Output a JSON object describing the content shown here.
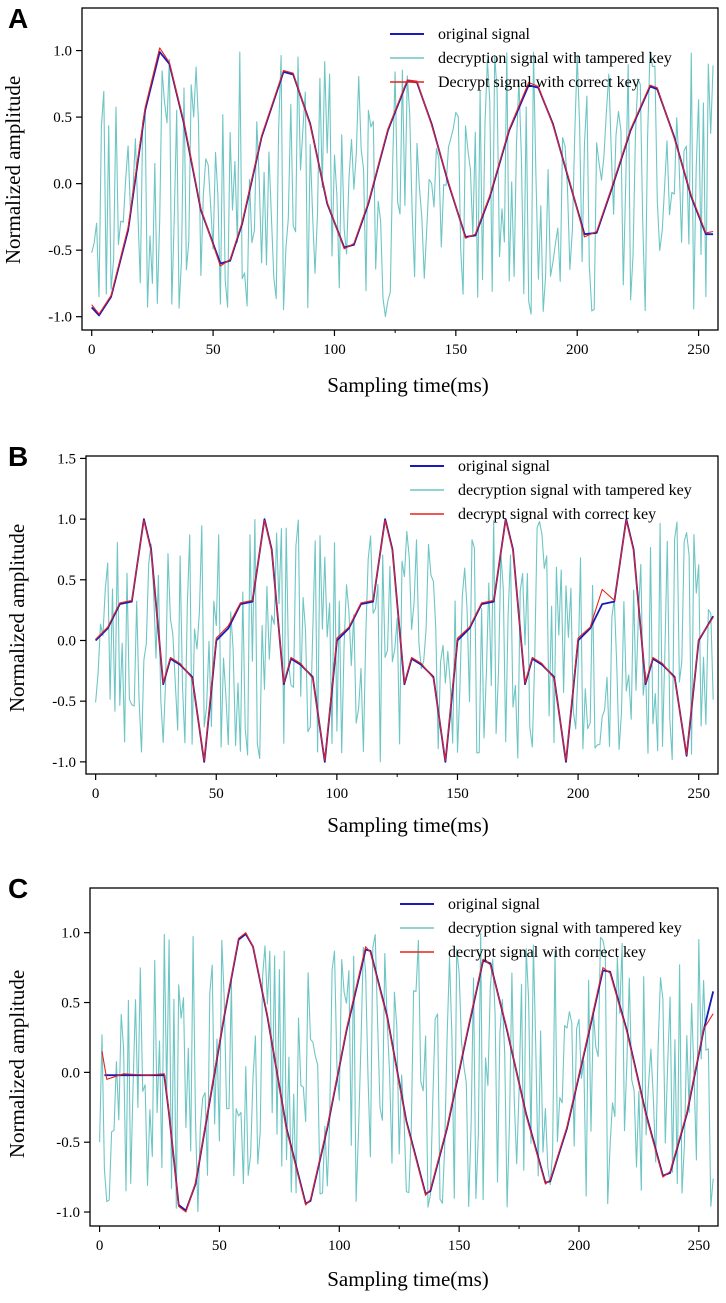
{
  "colors": {
    "original": "#1a1ab8",
    "tampered": "#6ec6c4",
    "correct": "#e8221e",
    "axis": "#000000"
  },
  "chart_data": [
    {
      "type": "line",
      "panel_label": "A",
      "xlabel": "Sampling time(ms)",
      "ylabel": "Normalized amplitude",
      "xlim": [
        -4,
        258
      ],
      "ylim": [
        -1.1,
        1.32
      ],
      "xticks": [
        0,
        50,
        100,
        150,
        200,
        250
      ],
      "yticks": [
        -1.0,
        -0.5,
        0.0,
        0.5,
        1.0
      ],
      "ytick_labels": [
        "-1.0",
        "-0.5",
        "0.0",
        "0.5",
        "1.0"
      ],
      "legend_position": "top-right",
      "series": [
        {
          "name": "original signal",
          "role": "original",
          "x": [
            0,
            3,
            8,
            15,
            22,
            28,
            32,
            38,
            45,
            53,
            57,
            62,
            70,
            79,
            83,
            90,
            97,
            104,
            108,
            114,
            122,
            130,
            134,
            140,
            147,
            154,
            158,
            164,
            172,
            180,
            184,
            190,
            197,
            203,
            208,
            214,
            222,
            230,
            233,
            240,
            247,
            253,
            256
          ],
          "y": [
            -0.93,
            -0.99,
            -0.85,
            -0.35,
            0.55,
            0.99,
            0.9,
            0.45,
            -0.2,
            -0.6,
            -0.58,
            -0.3,
            0.35,
            0.84,
            0.82,
            0.45,
            -0.15,
            -0.48,
            -0.46,
            -0.15,
            0.4,
            0.77,
            0.76,
            0.45,
            0.0,
            -0.4,
            -0.39,
            -0.1,
            0.4,
            0.74,
            0.72,
            0.45,
            0.0,
            -0.38,
            -0.37,
            -0.05,
            0.4,
            0.73,
            0.71,
            0.35,
            -0.1,
            -0.38,
            -0.38
          ]
        },
        {
          "name": "decryption signal with tampered key",
          "role": "tampered",
          "x": [
            0,
            256
          ],
          "y": [
            -0.5,
            0.8
          ],
          "seed": 11
        },
        {
          "name": "Decrypt signal with correct key",
          "role": "correct",
          "x": [
            0,
            3,
            8,
            15,
            22,
            28,
            32,
            38,
            45,
            53,
            57,
            62,
            70,
            79,
            83,
            90,
            97,
            104,
            108,
            114,
            122,
            130,
            134,
            140,
            147,
            154,
            158,
            164,
            172,
            180,
            184,
            190,
            197,
            203,
            208,
            214,
            222,
            230,
            233,
            240,
            247,
            253,
            256
          ],
          "y": [
            -0.91,
            -0.98,
            -0.84,
            -0.33,
            0.57,
            1.02,
            0.91,
            0.46,
            -0.19,
            -0.62,
            -0.57,
            -0.29,
            0.36,
            0.85,
            0.83,
            0.44,
            -0.14,
            -0.49,
            -0.45,
            -0.14,
            0.41,
            0.78,
            0.77,
            0.44,
            0.01,
            -0.41,
            -0.38,
            -0.09,
            0.41,
            0.76,
            0.73,
            0.44,
            0.01,
            -0.4,
            -0.36,
            -0.04,
            0.41,
            0.74,
            0.72,
            0.34,
            -0.09,
            -0.37,
            -0.36
          ]
        }
      ]
    },
    {
      "type": "line",
      "panel_label": "B",
      "xlabel": "Sampling time(ms)",
      "ylabel": "Normalized amplitude",
      "xlim": [
        -4,
        258
      ],
      "ylim": [
        -1.1,
        1.52
      ],
      "xticks": [
        0,
        50,
        100,
        150,
        200,
        250
      ],
      "yticks": [
        -1.0,
        -0.5,
        0.0,
        0.5,
        1.0,
        1.5
      ],
      "ytick_labels": [
        "-1.0",
        "-0.5",
        "0.0",
        "0.5",
        "1.0",
        "1.5"
      ],
      "legend_position": "top-right",
      "series": [
        {
          "name": "original signal",
          "role": "original",
          "x": [
            0,
            5,
            10,
            15,
            20,
            23,
            28,
            31,
            35,
            40,
            45,
            50,
            55,
            60,
            65,
            70,
            73,
            78,
            81,
            85,
            90,
            95,
            100,
            105,
            110,
            115,
            120,
            123,
            128,
            131,
            135,
            140,
            145,
            150,
            155,
            160,
            165,
            170,
            173,
            178,
            181,
            185,
            190,
            195,
            200,
            205,
            210,
            215,
            220,
            223,
            228,
            231,
            235,
            240,
            245,
            250,
            256
          ],
          "y": [
            0.0,
            0.1,
            0.3,
            0.32,
            1.0,
            0.75,
            -0.36,
            -0.15,
            -0.2,
            -0.3,
            -1.0,
            0.0,
            0.1,
            0.3,
            0.32,
            1.0,
            0.75,
            -0.36,
            -0.15,
            -0.2,
            -0.3,
            -1.0,
            0.0,
            0.1,
            0.3,
            0.32,
            1.0,
            0.75,
            -0.36,
            -0.15,
            -0.2,
            -0.3,
            -1.0,
            0.0,
            0.1,
            0.3,
            0.32,
            1.0,
            0.75,
            -0.36,
            -0.15,
            -0.2,
            -0.3,
            -1.0,
            0.0,
            0.1,
            0.3,
            0.32,
            1.0,
            0.75,
            -0.36,
            -0.15,
            -0.2,
            -0.3,
            -0.95,
            0.0,
            0.2
          ]
        },
        {
          "name": "decryption signal with tampered key",
          "role": "tampered",
          "x": [
            0,
            256
          ],
          "y": [
            -0.5,
            0.8
          ],
          "seed": 23
        },
        {
          "name": "decrypt signal with correct key",
          "role": "correct",
          "x": [
            0,
            5,
            10,
            15,
            20,
            23,
            28,
            31,
            35,
            40,
            45,
            50,
            55,
            60,
            65,
            70,
            73,
            78,
            81,
            85,
            90,
            95,
            100,
            105,
            110,
            115,
            120,
            123,
            128,
            131,
            135,
            140,
            145,
            150,
            155,
            160,
            165,
            170,
            173,
            178,
            181,
            185,
            190,
            195,
            200,
            205,
            210,
            215,
            220,
            223,
            228,
            231,
            235,
            240,
            245,
            250,
            256
          ],
          "y": [
            0.01,
            0.11,
            0.31,
            0.33,
            0.99,
            0.74,
            -0.35,
            -0.14,
            -0.19,
            -0.31,
            -0.99,
            0.02,
            0.12,
            0.31,
            0.33,
            0.99,
            0.74,
            -0.35,
            -0.14,
            -0.19,
            -0.31,
            -0.99,
            0.02,
            0.11,
            0.31,
            0.33,
            0.99,
            0.74,
            -0.35,
            -0.14,
            -0.19,
            -0.31,
            -0.99,
            0.02,
            0.11,
            0.31,
            0.33,
            0.99,
            0.74,
            -0.35,
            -0.14,
            -0.19,
            -0.31,
            -0.99,
            0.02,
            0.11,
            0.42,
            0.33,
            0.99,
            0.74,
            -0.35,
            -0.14,
            -0.19,
            -0.31,
            -0.94,
            0.01,
            0.19
          ]
        }
      ]
    },
    {
      "type": "line",
      "panel_label": "C",
      "xlabel": "Sampling time(ms)",
      "ylabel": "Normalized amplitude",
      "xlim": [
        -4,
        258
      ],
      "ylim": [
        -1.1,
        1.32
      ],
      "xticks": [
        0,
        50,
        100,
        150,
        200,
        250
      ],
      "yticks": [
        -1.0,
        -0.5,
        0.0,
        0.5,
        1.0
      ],
      "ytick_labels": [
        "-1.0",
        "-0.5",
        "0.0",
        "0.5",
        "1.0"
      ],
      "legend_position": "top-right",
      "series": [
        {
          "name": "original signal",
          "role": "original",
          "x": [
            2,
            10,
            20,
            27,
            29,
            33,
            36,
            40,
            45,
            52,
            58,
            61,
            64,
            70,
            78,
            86,
            88,
            95,
            103,
            111,
            113,
            120,
            128,
            136,
            138,
            145,
            153,
            160,
            163,
            170,
            178,
            186,
            188,
            195,
            203,
            210,
            213,
            220,
            228,
            235,
            238,
            245,
            252,
            256
          ],
          "y": [
            -0.02,
            -0.02,
            -0.02,
            -0.02,
            -0.3,
            -0.95,
            -0.99,
            -0.8,
            -0.3,
            0.4,
            0.95,
            0.99,
            0.9,
            0.4,
            -0.4,
            -0.94,
            -0.92,
            -0.4,
            0.3,
            0.88,
            0.87,
            0.4,
            -0.35,
            -0.87,
            -0.85,
            -0.4,
            0.25,
            0.8,
            0.78,
            0.3,
            -0.3,
            -0.79,
            -0.78,
            -0.4,
            0.2,
            0.73,
            0.72,
            0.3,
            -0.3,
            -0.74,
            -0.72,
            -0.3,
            0.3,
            0.58
          ]
        },
        {
          "name": "decryption signal with tampered key",
          "role": "tampered",
          "x": [
            0,
            256
          ],
          "y": [
            -0.5,
            0.8
          ],
          "seed": 37
        },
        {
          "name": "decrypt signal with correct key",
          "role": "correct",
          "x": [
            1,
            3,
            10,
            20,
            27,
            29,
            33,
            36,
            40,
            45,
            52,
            58,
            61,
            64,
            70,
            78,
            86,
            88,
            95,
            103,
            111,
            113,
            120,
            128,
            136,
            138,
            145,
            153,
            160,
            163,
            170,
            178,
            186,
            188,
            195,
            203,
            210,
            213,
            220,
            228,
            235,
            238,
            245,
            252,
            256
          ],
          "y": [
            0.15,
            -0.05,
            -0.01,
            -0.02,
            -0.01,
            -0.29,
            -0.96,
            -1.0,
            -0.79,
            -0.29,
            0.41,
            0.96,
            1.0,
            0.9,
            0.41,
            -0.41,
            -0.95,
            -0.91,
            -0.39,
            0.31,
            0.9,
            0.86,
            0.39,
            -0.36,
            -0.88,
            -0.84,
            -0.39,
            0.26,
            0.81,
            0.77,
            0.31,
            -0.31,
            -0.8,
            -0.77,
            -0.39,
            0.21,
            0.75,
            0.71,
            0.29,
            -0.31,
            -0.75,
            -0.71,
            -0.29,
            0.31,
            0.42
          ]
        }
      ]
    }
  ]
}
